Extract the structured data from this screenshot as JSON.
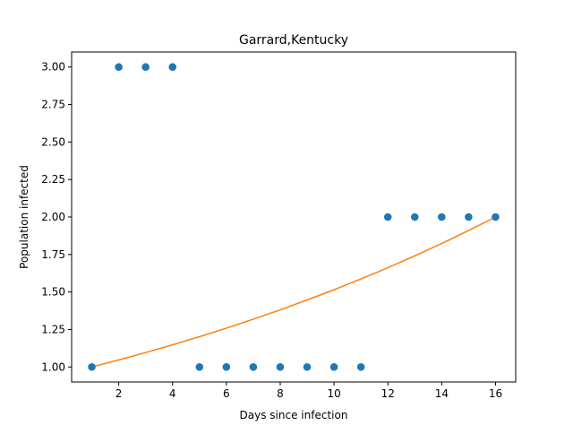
{
  "chart_data": {
    "type": "scatter",
    "title": "Garrard,Kentucky",
    "xlabel": "Days since infection",
    "ylabel": "Population infected",
    "xlim": [
      0.25,
      16.75
    ],
    "ylim": [
      0.9,
      3.1
    ],
    "xticks": [
      2,
      4,
      6,
      8,
      10,
      12,
      14,
      16
    ],
    "xtick_labels": [
      "2",
      "4",
      "6",
      "8",
      "10",
      "12",
      "14",
      "16"
    ],
    "yticks": [
      1.0,
      1.25,
      1.5,
      1.75,
      2.0,
      2.25,
      2.5,
      2.75,
      3.0
    ],
    "ytick_labels": [
      "1.00",
      "1.25",
      "1.50",
      "1.75",
      "2.00",
      "2.25",
      "2.50",
      "2.75",
      "3.00"
    ],
    "grid": false,
    "series": [
      {
        "kind": "scatter",
        "color": "#1f77b4",
        "x": [
          1,
          2,
          3,
          4,
          5,
          6,
          7,
          8,
          9,
          10,
          11,
          12,
          13,
          14,
          15,
          16
        ],
        "y": [
          1,
          3,
          3,
          3,
          1,
          1,
          1,
          1,
          1,
          1,
          1,
          2,
          2,
          2,
          2,
          2
        ]
      },
      {
        "kind": "line",
        "color": "#ff7f0e",
        "x": [
          1,
          2,
          3,
          4,
          5,
          6,
          7,
          8,
          9,
          10,
          11,
          12,
          13,
          14,
          15,
          16
        ],
        "y": [
          1.0,
          1.047,
          1.096,
          1.148,
          1.202,
          1.259,
          1.319,
          1.381,
          1.447,
          1.515,
          1.587,
          1.662,
          1.741,
          1.823,
          1.91,
          2.0
        ]
      }
    ]
  }
}
